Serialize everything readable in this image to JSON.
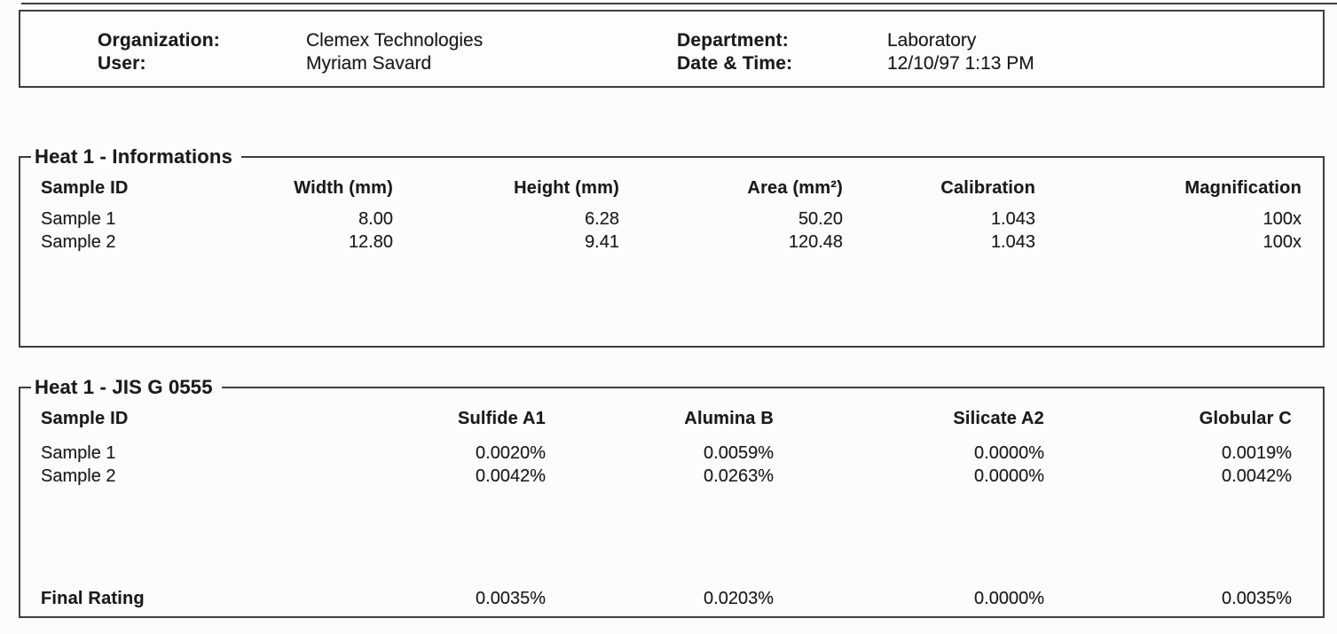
{
  "colors": {
    "border": "#3e3e3e",
    "ink": "#1b1b1b",
    "paper": "#fcfcfc"
  },
  "document": {
    "header": {
      "left": [
        {
          "label": "Organization:",
          "value": "Clemex Technologies"
        },
        {
          "label": "User:",
          "value": "Myriam Savard"
        }
      ],
      "right": [
        {
          "label": "Department:",
          "value": "Laboratory"
        },
        {
          "label": "Date & Time:",
          "value": "12/10/97 1:13 PM"
        }
      ]
    },
    "sections": [
      {
        "title": "Heat 1 - Informations",
        "columns": [
          "Sample ID",
          "Width (mm)",
          "Height (mm)",
          "Area (mm²)",
          "Calibration",
          "Magnification"
        ],
        "rows": [
          [
            "Sample 1",
            "8.00",
            "6.28",
            "50.20",
            "1.043",
            "100x"
          ],
          [
            "Sample 2",
            "12.80",
            "9.41",
            "120.48",
            "1.043",
            "100x"
          ]
        ]
      },
      {
        "title": "Heat 1 - JIS G 0555",
        "columns": [
          "Sample ID",
          "Sulfide A1",
          "Alumina B",
          "Silicate A2",
          "Globular C"
        ],
        "rows": [
          [
            "Sample 1",
            "0.0020%",
            "0.0059%",
            "0.0000%",
            "0.0019%"
          ],
          [
            "Sample 2",
            "0.0042%",
            "0.0263%",
            "0.0000%",
            "0.0042%"
          ]
        ],
        "footer": {
          "label": "Final Rating",
          "values": [
            "0.0035%",
            "0.0203%",
            "0.0000%",
            "0.0035%"
          ]
        }
      }
    ]
  }
}
